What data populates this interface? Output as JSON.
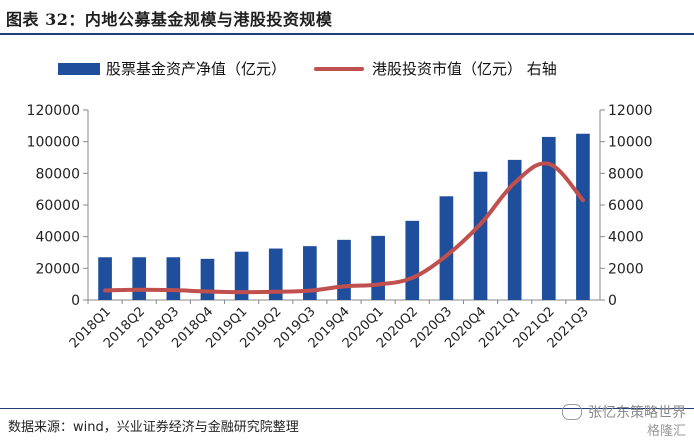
{
  "figure": {
    "title": "图表 32：内地公募基金规模与港股投资规模",
    "source": "数据来源：wind，兴业证券经济与金融研究院整理",
    "watermark": "张忆东策略世界",
    "badge": "格隆汇"
  },
  "colors": {
    "bar": "#1f4e9c",
    "line": "#c0504d",
    "axis": "#888888"
  },
  "chart_data": {
    "type": "bar",
    "categories": [
      "2018Q1",
      "2018Q2",
      "2018Q3",
      "2018Q4",
      "2019Q1",
      "2019Q2",
      "2019Q3",
      "2019Q4",
      "2020Q1",
      "2020Q2",
      "2020Q3",
      "2020Q4",
      "2021Q1",
      "2021Q2",
      "2021Q3"
    ],
    "series": [
      {
        "name": "股票基金资产净值（亿元）",
        "type": "bar",
        "axis": "left",
        "values": [
          27000,
          27000,
          27000,
          26000,
          30500,
          32500,
          34000,
          38000,
          40500,
          50000,
          65500,
          81000,
          88500,
          103000,
          105000
        ]
      },
      {
        "name": "港股投资市值（亿元） 右轴",
        "type": "line",
        "axis": "right",
        "values": [
          600,
          650,
          620,
          540,
          500,
          520,
          590,
          860,
          980,
          1400,
          2800,
          4800,
          7400,
          8600,
          6300
        ]
      }
    ],
    "ylim_left": [
      0,
      120000
    ],
    "ylim_right": [
      0,
      12000
    ],
    "yticks_left": [
      "0",
      "20000",
      "40000",
      "60000",
      "80000",
      "100000",
      "120000"
    ],
    "yticks_right": [
      "0",
      "2000",
      "4000",
      "6000",
      "8000",
      "10000",
      "12000"
    ],
    "legend": "top",
    "grid": false
  }
}
